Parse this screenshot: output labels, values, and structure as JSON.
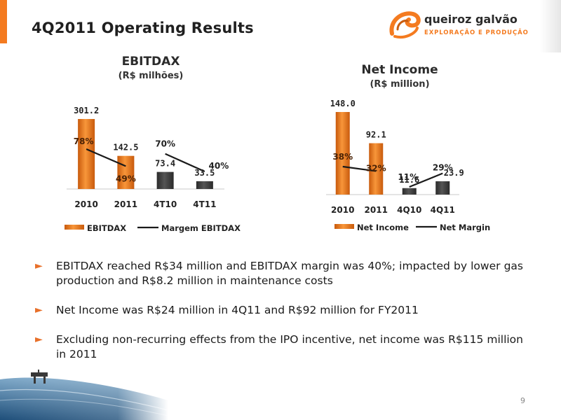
{
  "header": {
    "title": "4Q2011 Operating Results"
  },
  "logo": {
    "name": "queiroz galvão",
    "subtitle": "EXPLORAÇÃO E PRODUÇÃO"
  },
  "colors": {
    "orange": "#f47b20",
    "dark_gray": "#3a3a3a",
    "text": "#1a1a1a"
  },
  "chart_data": [
    {
      "type": "bar",
      "title": "EBITDAX",
      "subtitle": "(R$ milhões)",
      "categories": [
        "2010",
        "2011",
        "4T10",
        "4T11"
      ],
      "series": [
        {
          "name": "EBITDAX",
          "values": [
            301.2,
            142.5,
            73.4,
            33.5
          ],
          "value_labels": [
            "301.2",
            "142.5",
            "73.4",
            "33.5"
          ]
        },
        {
          "name": "Margem EBITDAX",
          "values": [
            78,
            49,
            70,
            40
          ],
          "value_labels": [
            "78%",
            "49%",
            "70%",
            "40%"
          ]
        }
      ],
      "legend_position": "bottom",
      "grid": false
    },
    {
      "type": "bar",
      "title": "Net Income",
      "subtitle": "(R$ million)",
      "categories": [
        "2010",
        "2011",
        "4Q10",
        "4Q11"
      ],
      "series": [
        {
          "name": "Net Income",
          "values": [
            148.0,
            92.1,
            11.6,
            23.9
          ],
          "value_labels": [
            "148.0",
            "92.1",
            "11.6",
            "23.9"
          ]
        },
        {
          "name": "Net Margin",
          "values": [
            38,
            32,
            11,
            29
          ],
          "value_labels": [
            "38%",
            "32%",
            "11%",
            "29%"
          ]
        }
      ],
      "legend_position": "bottom",
      "grid": false
    }
  ],
  "bullets": [
    "EBITDAX reached R$34 million and EBITDAX margin was 40%; impacted by lower gas production and R$8.2 million in maintenance costs",
    "Net Income was R$24 million in 4Q11 and R$92 million for FY2011",
    "Excluding non-recurring effects from the IPO incentive, net income was R$115 million in 2011"
  ],
  "bullet_icon": "arrow-right-icon",
  "footer": {
    "page_number": "9"
  }
}
